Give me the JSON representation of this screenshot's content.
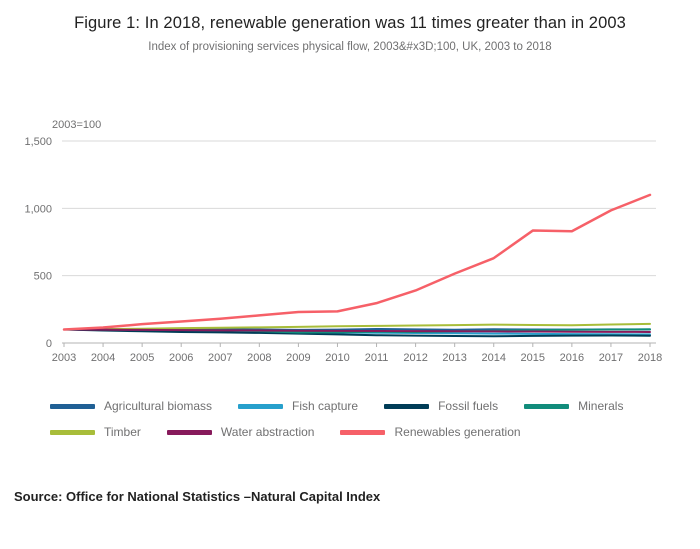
{
  "header": {
    "title": "Figure 1: In 2018, renewable generation was 11 times greater than in 2003",
    "subtitle": "Index of provisioning services physical flow, 2003&#x3D;100, UK, 2003 to 2018"
  },
  "chart": {
    "unit_label": "2003=100"
  },
  "chart_data": {
    "type": "line",
    "title": "Figure 1: In 2018, renewable generation was 11 times greater than in 2003",
    "xlabel": "",
    "ylabel": "2003=100",
    "x": [
      2003,
      2004,
      2005,
      2006,
      2007,
      2008,
      2009,
      2010,
      2011,
      2012,
      2013,
      2014,
      2015,
      2016,
      2017,
      2018
    ],
    "ylim": [
      0,
      1500
    ],
    "yticks": [
      {
        "label": "0",
        "value": 0
      },
      {
        "label": "500",
        "value": 500
      },
      {
        "label": "1,000",
        "value": 1000
      },
      {
        "label": "1,500",
        "value": 1500
      }
    ],
    "grid": true,
    "legend_position": "bottom",
    "legend_rows": [
      [
        0,
        1,
        2,
        3
      ],
      [
        4,
        5,
        6
      ]
    ],
    "series": [
      {
        "name": "Agricultural biomass",
        "color": "#206095",
        "values": [
          100,
          102,
          99,
          101,
          103,
          100,
          97,
          99,
          104,
          101,
          98,
          102,
          100,
          99,
          101,
          100
        ]
      },
      {
        "name": "Fish capture",
        "color": "#27A0CC",
        "values": [
          100,
          96,
          92,
          88,
          85,
          83,
          80,
          78,
          76,
          74,
          72,
          70,
          68,
          66,
          65,
          64
        ]
      },
      {
        "name": "Fossil fuels",
        "color": "#003C57",
        "values": [
          100,
          93,
          87,
          82,
          79,
          75,
          70,
          64,
          58,
          55,
          52,
          50,
          53,
          55,
          56,
          54
        ]
      },
      {
        "name": "Minerals",
        "color": "#118C7B",
        "values": [
          100,
          101,
          99,
          97,
          95,
          88,
          78,
          80,
          84,
          82,
          86,
          92,
          96,
          98,
          100,
          102
        ]
      },
      {
        "name": "Timber",
        "color": "#A8BD3A",
        "values": [
          100,
          103,
          106,
          110,
          113,
          116,
          120,
          124,
          127,
          130,
          133,
          136,
          134,
          132,
          137,
          142
        ]
      },
      {
        "name": "Water abstraction",
        "color": "#871A5B",
        "values": [
          100,
          99,
          97,
          96,
          94,
          93,
          91,
          90,
          89,
          88,
          87,
          86,
          85,
          84,
          83,
          82
        ]
      },
      {
        "name": "Renewables generation",
        "color": "#F66068",
        "values": [
          100,
          115,
          140,
          160,
          180,
          205,
          230,
          235,
          296,
          390,
          515,
          630,
          835,
          830,
          985,
          1100
        ]
      }
    ]
  },
  "footer": {
    "source": "Source: Office for National Statistics –Natural Capital Index"
  }
}
